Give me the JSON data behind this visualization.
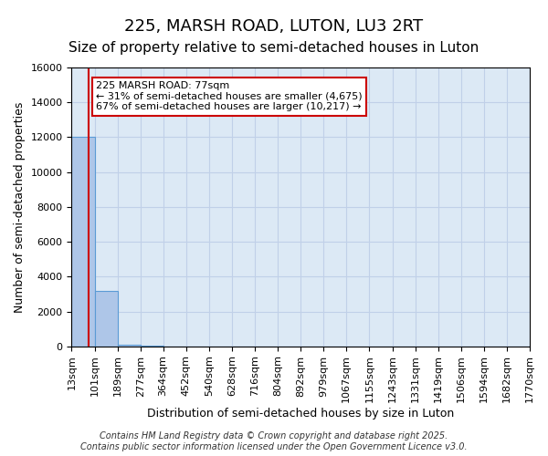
{
  "title1": "225, MARSH ROAD, LUTON, LU3 2RT",
  "title2": "Size of property relative to semi-detached houses in Luton",
  "xlabel": "Distribution of semi-detached houses by size in Luton",
  "ylabel": "Number of semi-detached properties",
  "bin_labels": [
    "13sqm",
    "101sqm",
    "189sqm",
    "277sqm",
    "364sqm",
    "452sqm",
    "540sqm",
    "628sqm",
    "716sqm",
    "804sqm",
    "892sqm",
    "979sqm",
    "1067sqm",
    "1155sqm",
    "1243sqm",
    "1331sqm",
    "1419sqm",
    "1506sqm",
    "1594sqm",
    "1682sqm",
    "1770sqm"
  ],
  "bin_edges": [
    13,
    101,
    189,
    277,
    364,
    452,
    540,
    628,
    716,
    804,
    892,
    979,
    1067,
    1155,
    1243,
    1331,
    1419,
    1506,
    1594,
    1682,
    1770
  ],
  "bar_values": [
    12000,
    3200,
    100,
    30,
    10,
    5,
    3,
    2,
    1,
    1,
    1,
    1,
    0,
    0,
    0,
    0,
    0,
    0,
    0,
    0
  ],
  "bar_color": "#aec6e8",
  "bar_edge_color": "#5b9bd5",
  "grid_color": "#c0d0e8",
  "background_color": "#dce9f5",
  "property_size": 77,
  "property_label": "225 MARSH ROAD: 77sqm",
  "pct_smaller": 31,
  "pct_larger": 67,
  "n_smaller": 4675,
  "n_larger": 10217,
  "annotation_box_color": "#cc0000",
  "vline_color": "#cc0000",
  "ylim": [
    0,
    16000
  ],
  "yticks": [
    0,
    2000,
    4000,
    6000,
    8000,
    10000,
    12000,
    14000,
    16000
  ],
  "footer1": "Contains HM Land Registry data © Crown copyright and database right 2025.",
  "footer2": "Contains public sector information licensed under the Open Government Licence v3.0.",
  "title1_fontsize": 13,
  "title2_fontsize": 11,
  "xlabel_fontsize": 9,
  "ylabel_fontsize": 9,
  "tick_fontsize": 8,
  "annotation_fontsize": 8,
  "footer_fontsize": 7
}
